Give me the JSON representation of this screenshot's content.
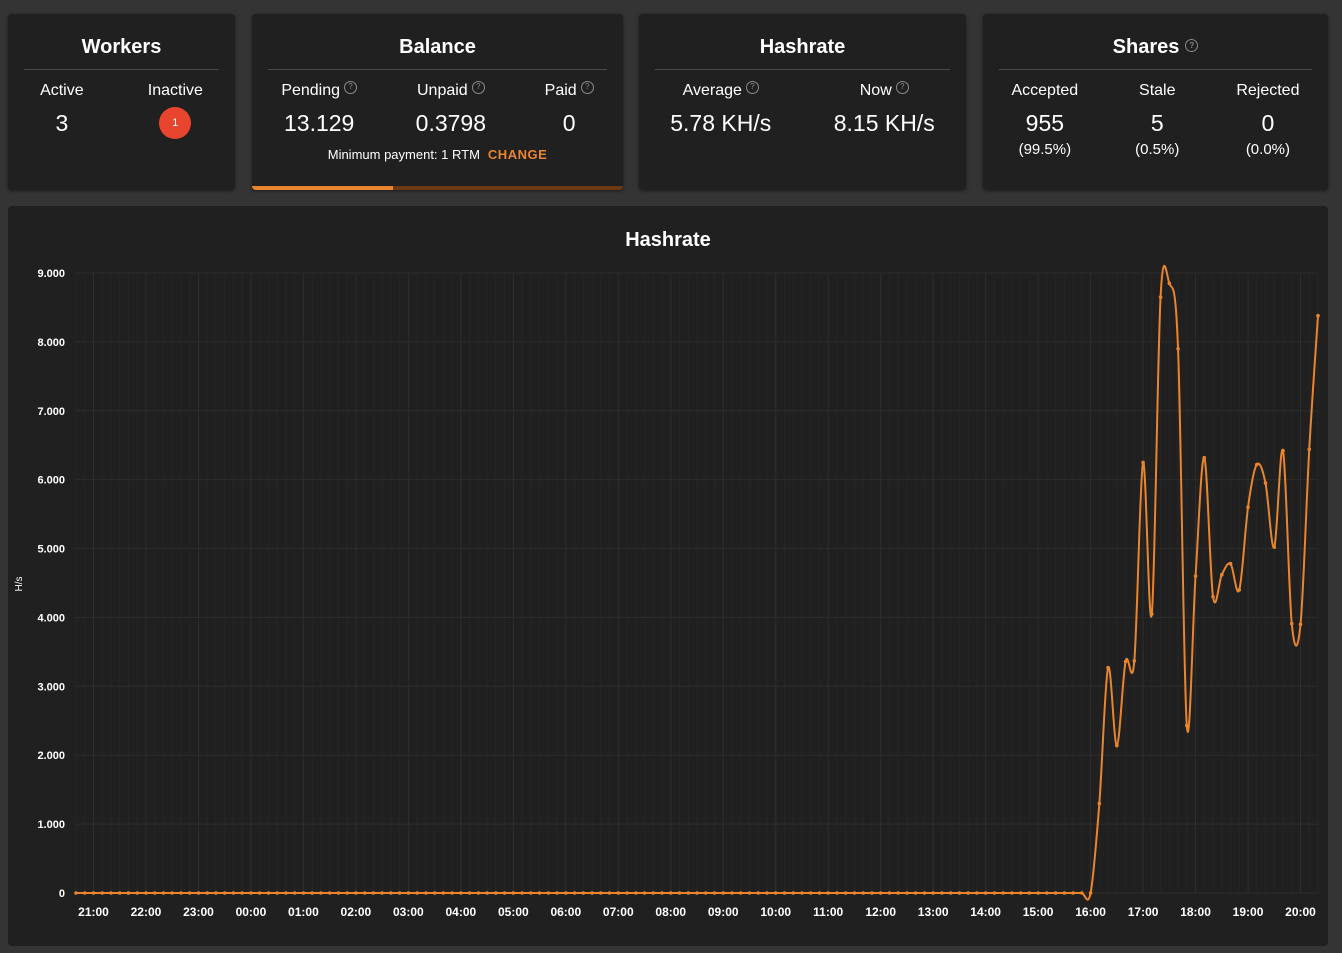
{
  "workers": {
    "title": "Workers",
    "active_label": "Active",
    "active_value": "3",
    "inactive_label": "Inactive",
    "inactive_value": "1"
  },
  "balance": {
    "title": "Balance",
    "pending_label": "Pending",
    "pending_value": "13.129",
    "unpaid_label": "Unpaid",
    "unpaid_value": "0.3798",
    "paid_label": "Paid",
    "paid_value": "0",
    "min_payment_text": "Minimum payment: 1 RTM",
    "change_label": "CHANGE",
    "progress_fraction": 0.38,
    "help_icon": "question-circle-icon"
  },
  "hashrate": {
    "title": "Hashrate",
    "average_label": "Average",
    "average_value": "5.78 KH/s",
    "now_label": "Now",
    "now_value": "8.15 KH/s"
  },
  "shares": {
    "title": "Shares",
    "accepted_label": "Accepted",
    "accepted_value": "955",
    "accepted_pct": "(99.5%)",
    "stale_label": "Stale",
    "stale_value": "5",
    "stale_pct": "(0.5%)",
    "rejected_label": "Rejected",
    "rejected_value": "0",
    "rejected_pct": "(0.0%)"
  },
  "colors": {
    "accent": "#e8852e",
    "badge": "#e8452f",
    "card_bg": "#202020",
    "page_bg": "#343434"
  },
  "chart_data": {
    "type": "line",
    "title": "Hashrate",
    "ylabel": "H/s",
    "xlabel": "",
    "ylim": [
      0,
      9000
    ],
    "y_ticks": [
      0,
      1000,
      2000,
      3000,
      4000,
      5000,
      6000,
      7000,
      8000,
      9000
    ],
    "y_tick_labels": [
      "0",
      "1.000",
      "2.000",
      "3.000",
      "4.000",
      "5.000",
      "6.000",
      "7.000",
      "8.000",
      "9.000"
    ],
    "x_tick_labels": [
      "21:00",
      "22:00",
      "23:00",
      "00:00",
      "01:00",
      "02:00",
      "03:00",
      "04:00",
      "05:00",
      "06:00",
      "07:00",
      "08:00",
      "09:00",
      "10:00",
      "11:00",
      "12:00",
      "13:00",
      "14:00",
      "15:00",
      "16:00",
      "17:00",
      "18:00",
      "19:00",
      "20:00"
    ],
    "x_first_tick_offset": 2,
    "x_points_per_tick": 6,
    "grid": true,
    "series": [
      {
        "values": [
          0,
          0,
          0,
          0,
          0,
          0,
          0,
          0,
          0,
          0,
          0,
          0,
          0,
          0,
          0,
          0,
          0,
          0,
          0,
          0,
          0,
          0,
          0,
          0,
          0,
          0,
          0,
          0,
          0,
          0,
          0,
          0,
          0,
          0,
          0,
          0,
          0,
          0,
          0,
          0,
          0,
          0,
          0,
          0,
          0,
          0,
          0,
          0,
          0,
          0,
          0,
          0,
          0,
          0,
          0,
          0,
          0,
          0,
          0,
          0,
          0,
          0,
          0,
          0,
          0,
          0,
          0,
          0,
          0,
          0,
          0,
          0,
          0,
          0,
          0,
          0,
          0,
          0,
          0,
          0,
          0,
          0,
          0,
          0,
          0,
          0,
          0,
          0,
          0,
          0,
          0,
          0,
          0,
          0,
          0,
          0,
          0,
          0,
          0,
          0,
          0,
          0,
          0,
          0,
          0,
          0,
          0,
          0,
          0,
          0,
          0,
          0,
          0,
          0,
          0,
          0,
          0,
          1300,
          3270,
          2140,
          3360,
          3370,
          6250,
          4050,
          8650,
          8850,
          7900,
          2430,
          4600,
          6320,
          4300,
          4620,
          4780,
          4400,
          5600,
          6220,
          5950,
          5020,
          6420,
          3910,
          3900,
          6440,
          8380
        ]
      }
    ]
  }
}
